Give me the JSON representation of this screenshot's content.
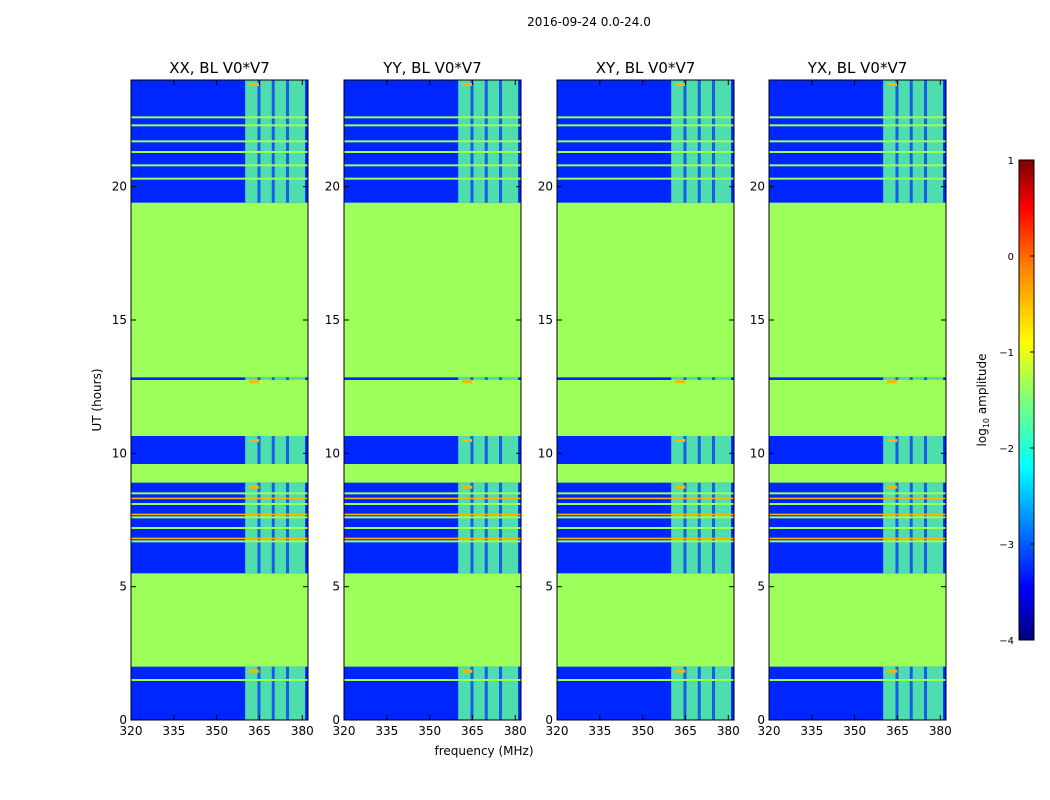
{
  "chart_data": {
    "type": "heatmap",
    "suptitle": "2016-09-24 0.0-24.0",
    "panels": [
      {
        "title": "XX, BL V0*V7"
      },
      {
        "title": "YY, BL V0*V7"
      },
      {
        "title": "XY, BL V0*V7"
      },
      {
        "title": "YX, BL V0*V7"
      }
    ],
    "xlabel": "frequency (MHz)",
    "ylabel": "UT (hours)",
    "xlim": [
      320,
      382
    ],
    "ylim": [
      0,
      24
    ],
    "xticks": [
      320,
      335,
      350,
      365,
      380
    ],
    "yticks": [
      0,
      5,
      10,
      15,
      20
    ],
    "rfi_band_mhz": [
      360,
      381
    ],
    "colorbar": {
      "label_main": "log",
      "label_sub": "10",
      "label_tail": " amplitude",
      "range": [
        -4,
        1
      ],
      "ticks": [
        1,
        0,
        -1,
        -2,
        -3,
        -4
      ],
      "tick_labels": [
        "1",
        "0",
        "−1",
        "−2",
        "−3",
        "−4"
      ],
      "colormap": "jet"
    },
    "flagged_value": -1.4,
    "data_rows_hours": [
      [
        0.0,
        2.0
      ],
      [
        5.5,
        8.9
      ],
      [
        9.6,
        10.65
      ],
      [
        12.75,
        12.85
      ],
      [
        19.4,
        24.0
      ]
    ],
    "colors": {
      "flagged": "#9dff5a",
      "background": "#0026ff",
      "band": "#5cffa0",
      "hot": "#ffb400"
    }
  }
}
